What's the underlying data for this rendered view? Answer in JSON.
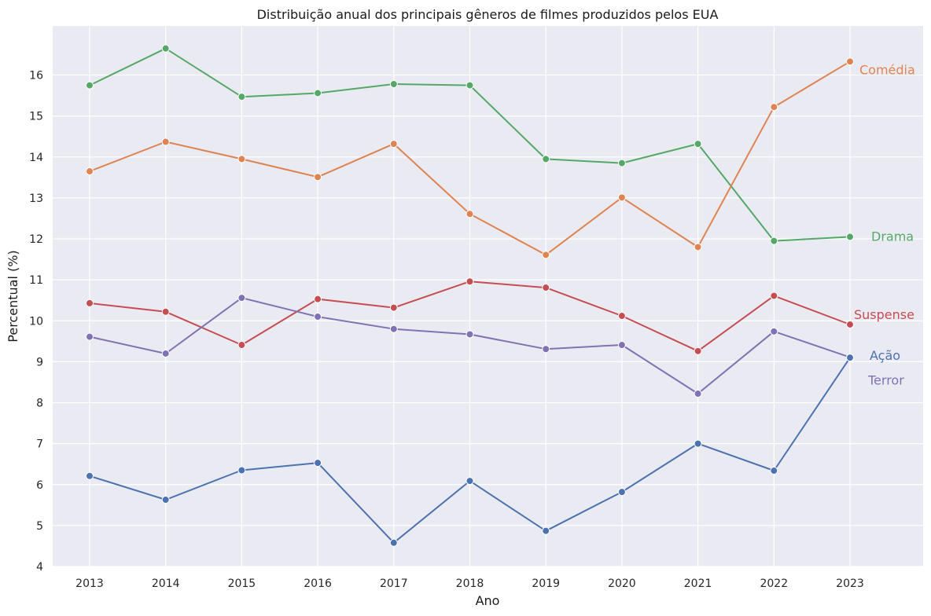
{
  "chart_data": {
    "type": "line",
    "title": "Distribuição anual dos principais gêneros de filmes produzidos pelos EUA",
    "xlabel": "Ano",
    "ylabel": "Percentual (%)",
    "x": [
      2013,
      2014,
      2015,
      2016,
      2017,
      2018,
      2019,
      2020,
      2021,
      2022,
      2023
    ],
    "x_tick_labels": [
      "2013",
      "2014",
      "2015",
      "2016",
      "2017",
      "2018",
      "2019",
      "2020",
      "2021",
      "2022",
      "2023"
    ],
    "ylim": [
      4,
      17.2
    ],
    "yticks": [
      4,
      5,
      6,
      7,
      8,
      9,
      10,
      11,
      12,
      13,
      14,
      15,
      16
    ],
    "y_tick_labels": [
      "4",
      "5",
      "6",
      "7",
      "8",
      "9",
      "10",
      "11",
      "12",
      "13",
      "14",
      "15",
      "16"
    ],
    "grid": true,
    "legend": "direct labels at line ends",
    "series": [
      {
        "name": "Drama",
        "color": "#55a868",
        "values": [
          15.75,
          16.65,
          15.47,
          15.56,
          15.78,
          15.75,
          13.95,
          13.85,
          14.32,
          11.95,
          12.05
        ]
      },
      {
        "name": "Comédia",
        "color": "#dd8452",
        "values": [
          13.65,
          14.37,
          13.95,
          13.51,
          14.32,
          12.61,
          11.61,
          13.01,
          11.8,
          15.22,
          16.33
        ]
      },
      {
        "name": "Suspense",
        "color": "#c44e52",
        "values": [
          10.43,
          10.22,
          9.41,
          10.53,
          10.32,
          10.96,
          10.81,
          10.12,
          9.26,
          10.61,
          9.91
        ]
      },
      {
        "name": "Terror",
        "color": "#8172b3",
        "values": [
          9.61,
          9.2,
          10.56,
          10.1,
          9.8,
          9.67,
          9.31,
          9.41,
          8.22,
          9.74,
          9.11
        ]
      },
      {
        "name": "Ação",
        "color": "#4c72b0",
        "values": [
          6.21,
          5.63,
          6.35,
          6.53,
          4.58,
          6.09,
          4.87,
          5.82,
          7.0,
          6.34,
          9.1
        ]
      }
    ]
  }
}
